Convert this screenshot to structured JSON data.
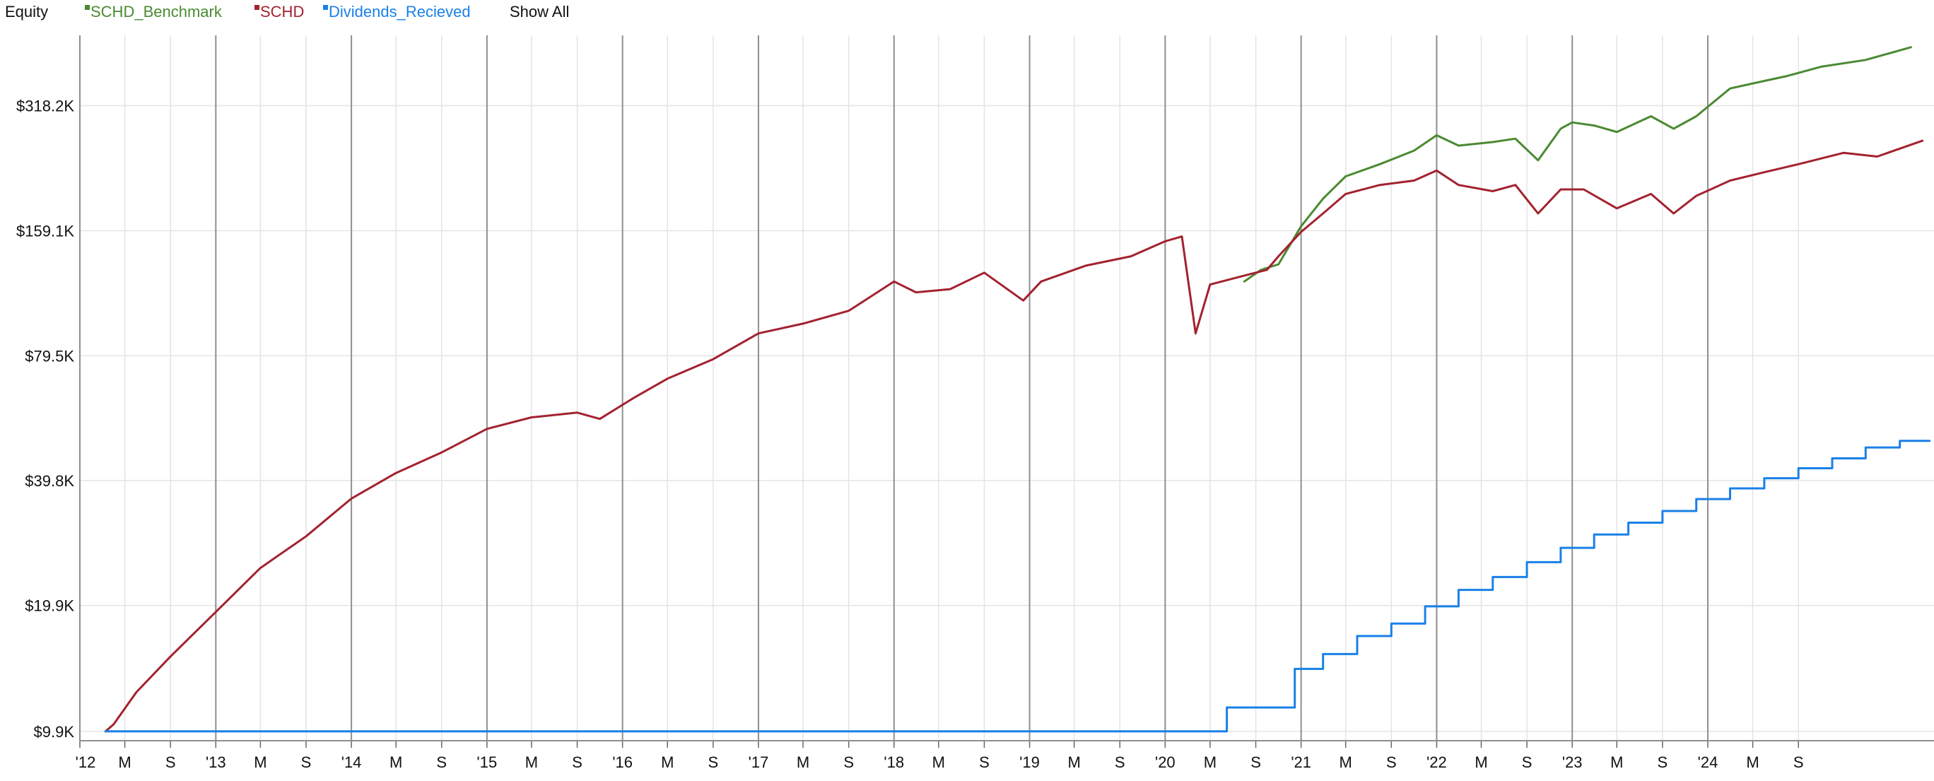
{
  "header": {
    "title": "Equity",
    "show_all_label": "Show All"
  },
  "colors": {
    "SCHD_Benchmark": "#4b8a32",
    "SCHD": "#a3222f",
    "Dividends_Recieved": "#1a80e8",
    "text": "#111111",
    "grid_major": "#8f8f8f",
    "grid_minor": "#e4e4e4"
  },
  "chart_data": {
    "type": "line",
    "y_scale": "log",
    "ylim": [
      9400,
      470000
    ],
    "xlim": [
      "2012-01-01",
      "2025-09-01"
    ],
    "y_ticks": [
      {
        "value": 9900,
        "label": "$9.9K"
      },
      {
        "value": 19900,
        "label": "$19.9K"
      },
      {
        "value": 39800,
        "label": "$39.8K"
      },
      {
        "value": 79500,
        "label": "$79.5K"
      },
      {
        "value": 159100,
        "label": "$159.1K"
      },
      {
        "value": 318200,
        "label": "$318.2K"
      }
    ],
    "x_ticks": [
      {
        "date": "2012-01-01",
        "label": "'12",
        "major": true
      },
      {
        "date": "2012-05-01",
        "label": "M",
        "major": false
      },
      {
        "date": "2012-09-01",
        "label": "S",
        "major": false
      },
      {
        "date": "2013-01-01",
        "label": "'13",
        "major": true
      },
      {
        "date": "2013-05-01",
        "label": "M",
        "major": false
      },
      {
        "date": "2013-09-01",
        "label": "S",
        "major": false
      },
      {
        "date": "2014-01-01",
        "label": "'14",
        "major": true
      },
      {
        "date": "2014-05-01",
        "label": "M",
        "major": false
      },
      {
        "date": "2014-09-01",
        "label": "S",
        "major": false
      },
      {
        "date": "2015-01-01",
        "label": "'15",
        "major": true
      },
      {
        "date": "2015-05-01",
        "label": "M",
        "major": false
      },
      {
        "date": "2015-09-01",
        "label": "S",
        "major": false
      },
      {
        "date": "2016-01-01",
        "label": "'16",
        "major": true
      },
      {
        "date": "2016-05-01",
        "label": "M",
        "major": false
      },
      {
        "date": "2016-09-01",
        "label": "S",
        "major": false
      },
      {
        "date": "2017-01-01",
        "label": "'17",
        "major": true
      },
      {
        "date": "2017-05-01",
        "label": "M",
        "major": false
      },
      {
        "date": "2017-09-01",
        "label": "S",
        "major": false
      },
      {
        "date": "2018-01-01",
        "label": "'18",
        "major": true
      },
      {
        "date": "2018-05-01",
        "label": "M",
        "major": false
      },
      {
        "date": "2018-09-01",
        "label": "S",
        "major": false
      },
      {
        "date": "2019-01-01",
        "label": "'19",
        "major": true
      },
      {
        "date": "2019-05-01",
        "label": "M",
        "major": false
      },
      {
        "date": "2019-09-01",
        "label": "S",
        "major": false
      },
      {
        "date": "2020-01-01",
        "label": "'20",
        "major": true
      },
      {
        "date": "2020-05-01",
        "label": "M",
        "major": false
      },
      {
        "date": "2020-09-01",
        "label": "S",
        "major": false
      },
      {
        "date": "2021-01-01",
        "label": "'21",
        "major": true
      },
      {
        "date": "2021-05-01",
        "label": "M",
        "major": false
      },
      {
        "date": "2021-09-01",
        "label": "S",
        "major": false
      },
      {
        "date": "2022-01-01",
        "label": "'22",
        "major": true
      },
      {
        "date": "2022-05-01",
        "label": "M",
        "major": false
      },
      {
        "date": "2022-09-01",
        "label": "S",
        "major": false
      },
      {
        "date": "2023-01-01",
        "label": "'23",
        "major": true
      },
      {
        "date": "2023-05-01",
        "label": "M",
        "major": false
      },
      {
        "date": "2023-09-01",
        "label": "S",
        "major": false
      },
      {
        "date": "2024-01-01",
        "label": "'24",
        "major": true
      },
      {
        "date": "2024-05-01",
        "label": "M",
        "major": false
      },
      {
        "date": "2024-09-01",
        "label": "S",
        "major": false
      }
    ],
    "series": [
      {
        "name": "SCHD_Benchmark",
        "points": [
          [
            "2020-08-01",
            120000
          ],
          [
            "2020-09-15",
            128000
          ],
          [
            "2020-11-01",
            132000
          ],
          [
            "2021-01-01",
            163000
          ],
          [
            "2021-03-01",
            190000
          ],
          [
            "2021-05-01",
            215000
          ],
          [
            "2021-08-01",
            230000
          ],
          [
            "2021-11-01",
            248000
          ],
          [
            "2022-01-01",
            270000
          ],
          [
            "2022-03-01",
            255000
          ],
          [
            "2022-06-01",
            260000
          ],
          [
            "2022-08-01",
            265000
          ],
          [
            "2022-10-01",
            235000
          ],
          [
            "2022-12-01",
            280000
          ],
          [
            "2023-01-01",
            290000
          ],
          [
            "2023-03-01",
            285000
          ],
          [
            "2023-05-01",
            275000
          ],
          [
            "2023-08-01",
            300000
          ],
          [
            "2023-10-01",
            280000
          ],
          [
            "2023-12-01",
            300000
          ],
          [
            "2024-03-01",
            350000
          ],
          [
            "2024-06-01",
            365000
          ],
          [
            "2024-08-01",
            375000
          ],
          [
            "2024-11-01",
            395000
          ],
          [
            "2025-03-01",
            410000
          ],
          [
            "2025-07-01",
            440000
          ]
        ]
      },
      {
        "name": "SCHD",
        "points": [
          [
            "2012-03-10",
            9900
          ],
          [
            "2012-04-01",
            10300
          ],
          [
            "2012-06-01",
            12300
          ],
          [
            "2012-09-01",
            15000
          ],
          [
            "2013-01-01",
            19200
          ],
          [
            "2013-05-01",
            24500
          ],
          [
            "2013-09-01",
            29200
          ],
          [
            "2014-01-01",
            36000
          ],
          [
            "2014-05-01",
            41500
          ],
          [
            "2014-09-01",
            46500
          ],
          [
            "2015-01-01",
            53000
          ],
          [
            "2015-05-01",
            56500
          ],
          [
            "2015-09-01",
            58000
          ],
          [
            "2015-11-01",
            56000
          ],
          [
            "2016-02-01",
            63000
          ],
          [
            "2016-05-01",
            70000
          ],
          [
            "2016-09-01",
            78000
          ],
          [
            "2017-01-01",
            90000
          ],
          [
            "2017-05-01",
            95000
          ],
          [
            "2017-09-01",
            102000
          ],
          [
            "2018-01-01",
            120000
          ],
          [
            "2018-03-01",
            113000
          ],
          [
            "2018-06-01",
            115000
          ],
          [
            "2018-09-01",
            126000
          ],
          [
            "2018-12-15",
            108000
          ],
          [
            "2019-02-01",
            120000
          ],
          [
            "2019-06-01",
            131000
          ],
          [
            "2019-10-01",
            138000
          ],
          [
            "2020-01-01",
            150000
          ],
          [
            "2020-02-15",
            154000
          ],
          [
            "2020-03-23",
            90000
          ],
          [
            "2020-05-01",
            118000
          ],
          [
            "2020-08-01",
            124000
          ],
          [
            "2020-10-01",
            128000
          ],
          [
            "2020-11-01",
            138000
          ],
          [
            "2021-01-01",
            158000
          ],
          [
            "2021-03-01",
            175000
          ],
          [
            "2021-05-01",
            195000
          ],
          [
            "2021-08-01",
            205000
          ],
          [
            "2021-11-01",
            210000
          ],
          [
            "2022-01-01",
            222000
          ],
          [
            "2022-03-01",
            205000
          ],
          [
            "2022-06-01",
            198000
          ],
          [
            "2022-08-01",
            205000
          ],
          [
            "2022-10-01",
            175000
          ],
          [
            "2022-12-01",
            200000
          ],
          [
            "2023-02-01",
            200000
          ],
          [
            "2023-05-01",
            180000
          ],
          [
            "2023-08-01",
            195000
          ],
          [
            "2023-10-01",
            175000
          ],
          [
            "2023-12-01",
            193000
          ],
          [
            "2024-03-01",
            210000
          ],
          [
            "2024-06-01",
            220000
          ],
          [
            "2024-09-01",
            230000
          ],
          [
            "2025-01-01",
            245000
          ],
          [
            "2025-04-01",
            240000
          ],
          [
            "2025-08-01",
            262000
          ]
        ]
      },
      {
        "name": "Dividends_Recieved",
        "step": true,
        "points": [
          [
            "2012-03-10",
            9900
          ],
          [
            "2020-06-15",
            9900
          ],
          [
            "2020-06-15",
            11300
          ],
          [
            "2020-12-15",
            11300
          ],
          [
            "2020-12-15",
            14000
          ],
          [
            "2021-03-01",
            14000
          ],
          [
            "2021-03-01",
            15200
          ],
          [
            "2021-06-01",
            15200
          ],
          [
            "2021-06-01",
            16800
          ],
          [
            "2021-09-01",
            16800
          ],
          [
            "2021-09-01",
            18000
          ],
          [
            "2021-12-01",
            18000
          ],
          [
            "2021-12-01",
            19800
          ],
          [
            "2022-03-01",
            19800
          ],
          [
            "2022-03-01",
            21700
          ],
          [
            "2022-06-01",
            21700
          ],
          [
            "2022-06-01",
            23300
          ],
          [
            "2022-09-01",
            23300
          ],
          [
            "2022-09-01",
            25300
          ],
          [
            "2022-12-01",
            25300
          ],
          [
            "2022-12-01",
            27400
          ],
          [
            "2023-03-01",
            27400
          ],
          [
            "2023-03-01",
            29500
          ],
          [
            "2023-06-01",
            29500
          ],
          [
            "2023-06-01",
            31500
          ],
          [
            "2023-09-01",
            31500
          ],
          [
            "2023-09-01",
            33600
          ],
          [
            "2023-12-01",
            33600
          ],
          [
            "2023-12-01",
            35900
          ],
          [
            "2024-03-01",
            35900
          ],
          [
            "2024-03-01",
            38100
          ],
          [
            "2024-06-01",
            38100
          ],
          [
            "2024-06-01",
            40300
          ],
          [
            "2024-09-01",
            40300
          ],
          [
            "2024-09-01",
            42600
          ],
          [
            "2024-12-01",
            42600
          ],
          [
            "2024-12-01",
            45000
          ],
          [
            "2025-03-01",
            45000
          ],
          [
            "2025-03-01",
            47800
          ],
          [
            "2025-06-01",
            47800
          ],
          [
            "2025-06-01",
            49600
          ],
          [
            "2025-08-20",
            49600
          ]
        ]
      }
    ]
  }
}
